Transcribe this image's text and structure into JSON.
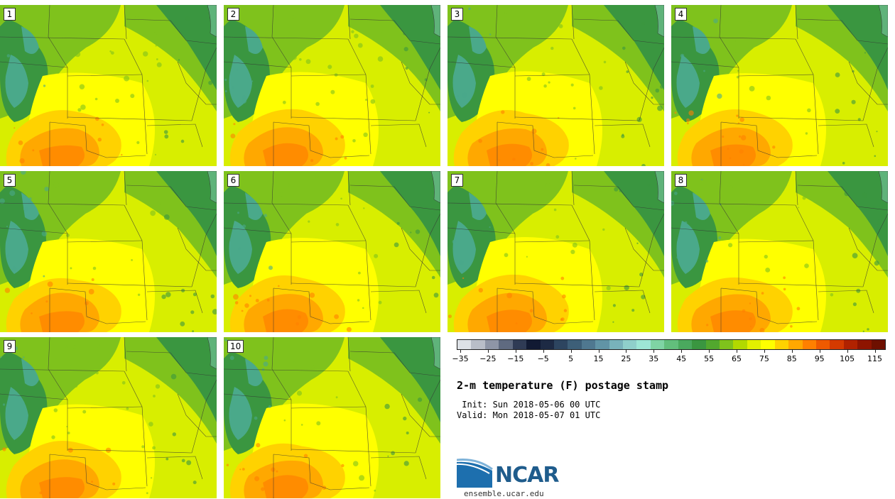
{
  "title": "2-m temperature (F) postage stamp",
  "init_label": " Init: Sun 2018-05-06 00 UTC",
  "valid_label": "Valid: Mon 2018-05-07 01 UTC",
  "logo_text": "NCAR",
  "site": "ensemble.ucar.edu",
  "members": [
    "1",
    "2",
    "3",
    "4",
    "5",
    "6",
    "7",
    "8",
    "9",
    "10"
  ],
  "colorbar": {
    "ticks": [
      "−35",
      "−25",
      "−15",
      "−5",
      "5",
      "15",
      "25",
      "35",
      "45",
      "55",
      "65",
      "75",
      "85",
      "95",
      "105",
      "115"
    ],
    "colors": [
      "#dde1e6",
      "#b9bec8",
      "#8e95a6",
      "#5f6a80",
      "#2f3b55",
      "#111a33",
      "#1d2a44",
      "#2d4560",
      "#3d5f78",
      "#4f7890",
      "#6194a6",
      "#78b2bb",
      "#8fcfcb",
      "#9de6d6",
      "#7fd4a4",
      "#62be7c",
      "#4aa95e",
      "#3a9640",
      "#52a82e",
      "#7fc21c",
      "#b2d900",
      "#e2f000",
      "#ffff00",
      "#ffd200",
      "#ffa800",
      "#ff8000",
      "#ee5a00",
      "#d43a00",
      "#b02200",
      "#8e1400",
      "#6e1000"
    ]
  },
  "colors": {
    "cold_green": "#3a9640",
    "mid_green": "#7fc21c",
    "yellow_green": "#d8ee00",
    "yellow": "#ffff00",
    "orange_light": "#ffd200",
    "orange": "#ffa800",
    "dark_orange": "#ff8000",
    "teal": "#4aa98a"
  }
}
